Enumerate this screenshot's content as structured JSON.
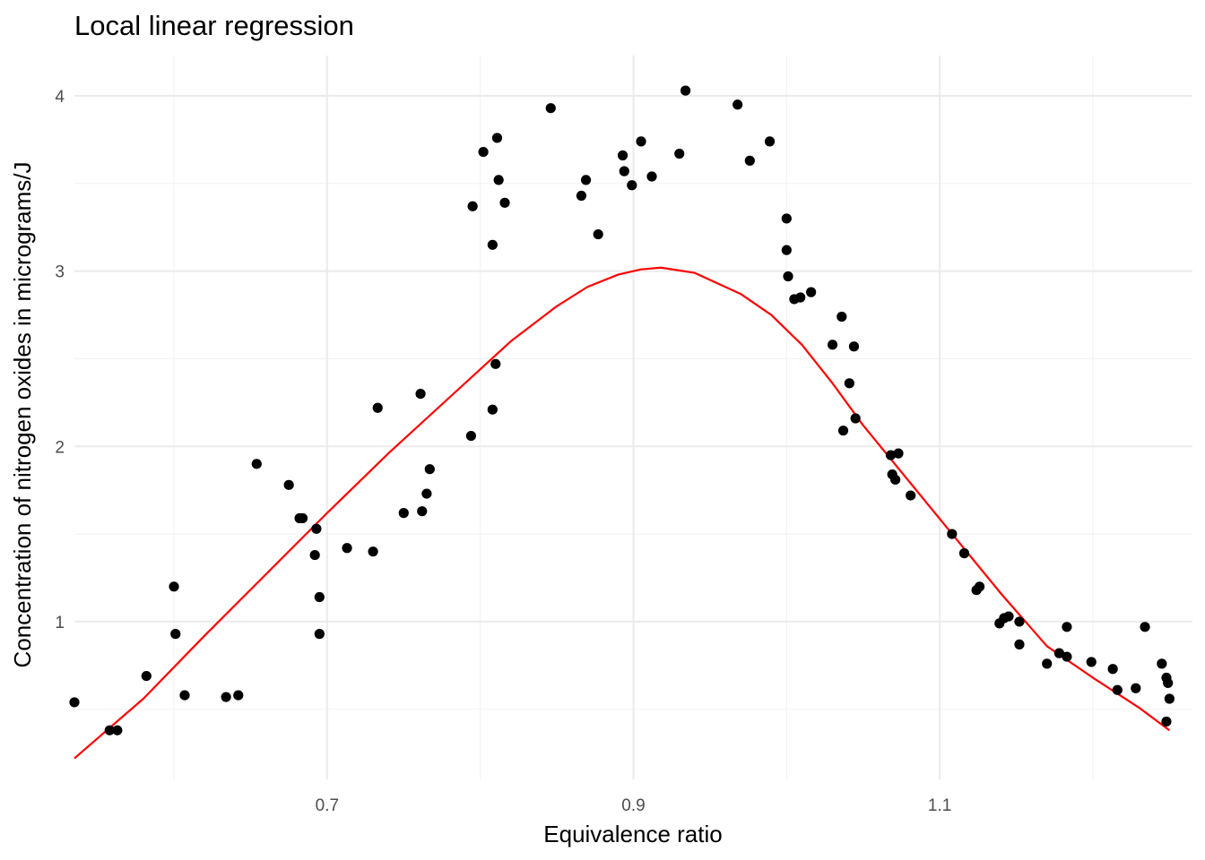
{
  "chart_data": {
    "type": "scatter",
    "title": "Local linear regression",
    "xlabel": "Equivalence ratio",
    "ylabel": "Concentration of nitrogen oxides in micrograms/J",
    "xlim": [
      0.535,
      1.265
    ],
    "ylim": [
      0.1,
      4.23
    ],
    "x_ticks": [
      0.7,
      0.9,
      1.1
    ],
    "x_tick_labels": [
      "0.7",
      "0.9",
      "1.1"
    ],
    "x_minor": [
      0.6,
      0.8,
      1.0,
      1.2
    ],
    "y_ticks": [
      1,
      2,
      3,
      4
    ],
    "y_tick_labels": [
      "1",
      "2",
      "3",
      "4"
    ],
    "y_minor": [
      0.5,
      1.5,
      2.5,
      3.5
    ],
    "grid": true,
    "colors": {
      "points": "#000000",
      "fit_line": "#ff0000",
      "grid_major": "#ebebeb",
      "grid_minor": "#f2f2f2"
    },
    "series": [
      {
        "type": "scatter",
        "points": [
          [
            0.535,
            0.54
          ],
          [
            0.558,
            0.38
          ],
          [
            0.563,
            0.38
          ],
          [
            0.582,
            0.69
          ],
          [
            0.6,
            1.2
          ],
          [
            0.601,
            0.93
          ],
          [
            0.607,
            0.58
          ],
          [
            0.634,
            0.57
          ],
          [
            0.642,
            0.58
          ],
          [
            0.654,
            1.9
          ],
          [
            0.675,
            1.78
          ],
          [
            0.682,
            1.59
          ],
          [
            0.684,
            1.59
          ],
          [
            0.692,
            1.38
          ],
          [
            0.693,
            1.53
          ],
          [
            0.695,
            1.14
          ],
          [
            0.695,
            0.93
          ],
          [
            0.713,
            1.42
          ],
          [
            0.73,
            1.4
          ],
          [
            0.733,
            2.22
          ],
          [
            0.75,
            1.62
          ],
          [
            0.761,
            2.3
          ],
          [
            0.762,
            1.63
          ],
          [
            0.765,
            1.73
          ],
          [
            0.767,
            1.87
          ],
          [
            0.794,
            2.06
          ],
          [
            0.795,
            3.37
          ],
          [
            0.802,
            3.68
          ],
          [
            0.808,
            3.15
          ],
          [
            0.808,
            2.21
          ],
          [
            0.81,
            2.47
          ],
          [
            0.811,
            3.76
          ],
          [
            0.812,
            3.52
          ],
          [
            0.816,
            3.39
          ],
          [
            0.846,
            3.93
          ],
          [
            0.866,
            3.43
          ],
          [
            0.869,
            3.52
          ],
          [
            0.877,
            3.21
          ],
          [
            0.893,
            3.66
          ],
          [
            0.894,
            3.57
          ],
          [
            0.899,
            3.49
          ],
          [
            0.905,
            3.74
          ],
          [
            0.912,
            3.54
          ],
          [
            0.93,
            3.67
          ],
          [
            0.934,
            4.03
          ],
          [
            0.968,
            3.95
          ],
          [
            0.976,
            3.63
          ],
          [
            0.989,
            3.74
          ],
          [
            1.0,
            3.3
          ],
          [
            1.0,
            3.12
          ],
          [
            1.001,
            2.97
          ],
          [
            1.005,
            2.84
          ],
          [
            1.009,
            2.85
          ],
          [
            1.016,
            2.88
          ],
          [
            1.03,
            2.58
          ],
          [
            1.036,
            2.74
          ],
          [
            1.037,
            2.09
          ],
          [
            1.041,
            2.36
          ],
          [
            1.044,
            2.57
          ],
          [
            1.045,
            2.16
          ],
          [
            1.068,
            1.95
          ],
          [
            1.069,
            1.84
          ],
          [
            1.071,
            1.81
          ],
          [
            1.073,
            1.96
          ],
          [
            1.081,
            1.72
          ],
          [
            1.108,
            1.5
          ],
          [
            1.116,
            1.39
          ],
          [
            1.124,
            1.18
          ],
          [
            1.126,
            1.2
          ],
          [
            1.139,
            0.99
          ],
          [
            1.142,
            1.02
          ],
          [
            1.145,
            1.03
          ],
          [
            1.152,
            1.0
          ],
          [
            1.152,
            0.87
          ],
          [
            1.17,
            0.76
          ],
          [
            1.178,
            0.82
          ],
          [
            1.183,
            0.97
          ],
          [
            1.183,
            0.8
          ],
          [
            1.199,
            0.77
          ],
          [
            1.213,
            0.73
          ],
          [
            1.216,
            0.61
          ],
          [
            1.228,
            0.62
          ],
          [
            1.234,
            0.97
          ],
          [
            1.245,
            0.76
          ],
          [
            1.248,
            0.68
          ],
          [
            1.249,
            0.65
          ],
          [
            1.25,
            0.56
          ],
          [
            1.248,
            0.43
          ]
        ]
      },
      {
        "type": "line",
        "points": [
          [
            0.535,
            0.22
          ],
          [
            0.58,
            0.56
          ],
          [
            0.62,
            0.92
          ],
          [
            0.66,
            1.27
          ],
          [
            0.7,
            1.62
          ],
          [
            0.74,
            1.96
          ],
          [
            0.78,
            2.28
          ],
          [
            0.8,
            2.44
          ],
          [
            0.82,
            2.6
          ],
          [
            0.85,
            2.8
          ],
          [
            0.87,
            2.91
          ],
          [
            0.89,
            2.98
          ],
          [
            0.905,
            3.01
          ],
          [
            0.918,
            3.02
          ],
          [
            0.94,
            2.99
          ],
          [
            0.97,
            2.87
          ],
          [
            0.99,
            2.75
          ],
          [
            1.01,
            2.58
          ],
          [
            1.03,
            2.36
          ],
          [
            1.05,
            2.12
          ],
          [
            1.08,
            1.8
          ],
          [
            1.11,
            1.48
          ],
          [
            1.14,
            1.16
          ],
          [
            1.17,
            0.86
          ],
          [
            1.2,
            0.68
          ],
          [
            1.23,
            0.51
          ],
          [
            1.25,
            0.38
          ]
        ]
      }
    ]
  }
}
